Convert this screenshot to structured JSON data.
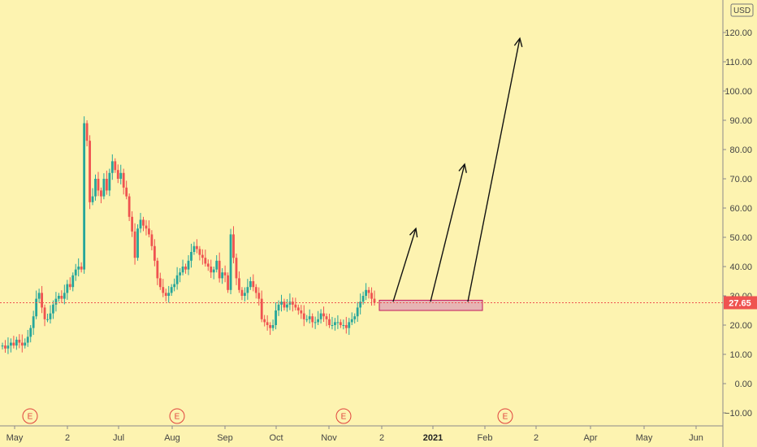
{
  "chart_data": {
    "type": "candlestick",
    "currency": "USD",
    "last_price_label": "27.65",
    "last_price": 27.65,
    "y_ticks": [
      "120.00",
      "110.00",
      "100.00",
      "90.00",
      "80.00",
      "70.00",
      "60.00",
      "50.00",
      "40.00",
      "30.00",
      "20.00",
      "10.00",
      "0.00",
      "−10.00"
    ],
    "y_tick_values": [
      120,
      110,
      100,
      90,
      80,
      70,
      60,
      50,
      40,
      30,
      20,
      10,
      0,
      -10
    ],
    "ylim": [
      -15,
      130
    ],
    "x_ticks": [
      {
        "label": "May",
        "bold": false
      },
      {
        "label": "2",
        "bold": false
      },
      {
        "label": "Jul",
        "bold": false
      },
      {
        "label": "Aug",
        "bold": false
      },
      {
        "label": "Sep",
        "bold": false
      },
      {
        "label": "Oct",
        "bold": false
      },
      {
        "label": "Nov",
        "bold": false
      },
      {
        "label": "2",
        "bold": false
      },
      {
        "label": "2021",
        "bold": true
      },
      {
        "label": "Feb",
        "bold": false
      },
      {
        "label": "2",
        "bold": false
      },
      {
        "label": "Apr",
        "bold": false
      },
      {
        "label": "May",
        "bold": false
      },
      {
        "label": "Jun",
        "bold": false
      }
    ],
    "earnings_marker_label": "E",
    "earnings_markers": 4,
    "colors": {
      "background": "#fdf3b0",
      "up": "#26a69a",
      "down": "#ef5350",
      "price_line": "#ef5350",
      "zone_fill": "#e6b4b4",
      "zone_border": "#c2185b",
      "arrows": "#111111",
      "earnings": "#e0433e"
    },
    "close_path": [
      13,
      12,
      13,
      14,
      13,
      15,
      14,
      13,
      14,
      16,
      19,
      23,
      29,
      31,
      26,
      22,
      22,
      24,
      27,
      29,
      30,
      29,
      31,
      34,
      33,
      37,
      39,
      40,
      39,
      89,
      83,
      62,
      64,
      70,
      66,
      64,
      70,
      66,
      72,
      76,
      73,
      70,
      72,
      67,
      64,
      57,
      52,
      43,
      53,
      56,
      54,
      53,
      51,
      47,
      42,
      36,
      33,
      31,
      30,
      31,
      33,
      34,
      37,
      38,
      40,
      39,
      42,
      45,
      47,
      46,
      44,
      43,
      41,
      40,
      38,
      39,
      42,
      36,
      38,
      37,
      32,
      51,
      43,
      36,
      32,
      30,
      31,
      33,
      35,
      33,
      31,
      29,
      22,
      21,
      20,
      19,
      20,
      25,
      27,
      28,
      26,
      27,
      28,
      27,
      26,
      25,
      24,
      22,
      22,
      23,
      21,
      21,
      22,
      24,
      23,
      22,
      20,
      20,
      21,
      21,
      20,
      20,
      19,
      21,
      22,
      23,
      26,
      28,
      30,
      32,
      31,
      29,
      27.65
    ],
    "drawings": {
      "zone": {
        "x_from": "late Nov 2020",
        "x_to": "early Feb 2021",
        "y_from": 25,
        "y_to": 28.5
      },
      "arrows": [
        {
          "from": 28,
          "to": 53
        },
        {
          "from": 28,
          "to": 75
        },
        {
          "from": 28,
          "to": 118
        }
      ]
    }
  }
}
